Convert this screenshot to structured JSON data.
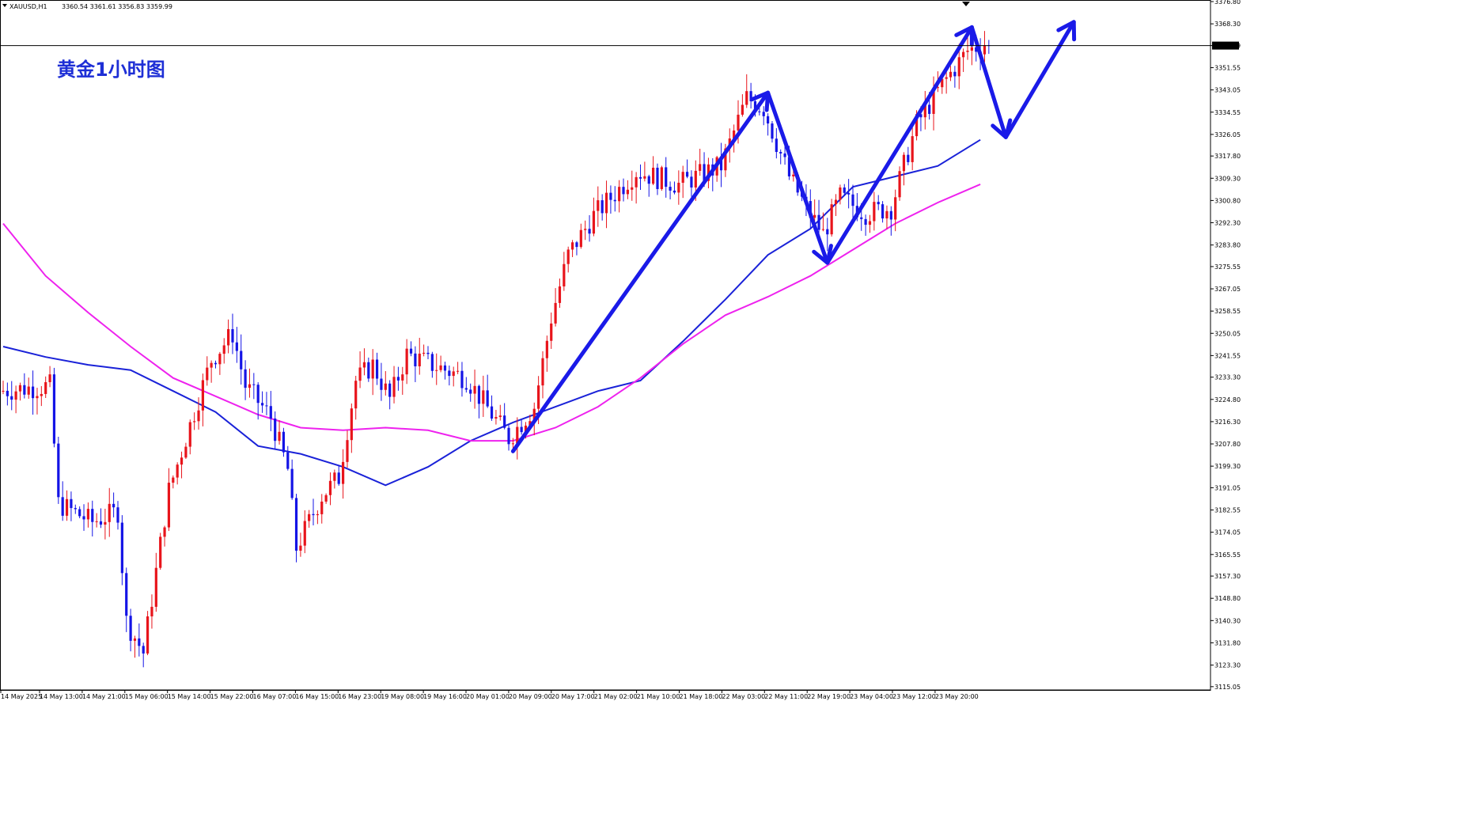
{
  "header": {
    "symbol": "XAUUSD,H1",
    "ohlc": "3360.54 3361.61 3356.83 3359.99"
  },
  "annotation_title": "黄金1小时图",
  "current_price_label": "3359.99",
  "colors": {
    "bull": "#e8141b",
    "bear": "#1414e6",
    "ma_fast": "#1a22d8",
    "ma_slow": "#ee22ee",
    "arrows": "#1a1ae8",
    "price_line": "#000000"
  },
  "chart_data": {
    "type": "candlestick",
    "instrument": "XAUUSD",
    "timeframe": "H1",
    "ylim": [
      3115.0,
      3376.8
    ],
    "y_ticks": [
      "3376.80",
      "3368.30",
      "3359.99",
      "3351.55",
      "3343.05",
      "3334.55",
      "3326.05",
      "3317.80",
      "3309.30",
      "3300.80",
      "3292.30",
      "3283.80",
      "3275.55",
      "3267.05",
      "3258.55",
      "3250.05",
      "3241.55",
      "3233.30",
      "3224.80",
      "3216.30",
      "3207.80",
      "3199.30",
      "3191.05",
      "3182.55",
      "3174.05",
      "3165.55",
      "3157.30",
      "3148.80",
      "3140.30",
      "3131.80",
      "3123.30",
      "3115.05"
    ],
    "x_ticks": [
      "14 May 2025",
      "14 May 13:00",
      "14 May 21:00",
      "15 May 06:00",
      "15 May 14:00",
      "15 May 22:00",
      "16 May 07:00",
      "16 May 15:00",
      "16 May 23:00",
      "19 May 08:00",
      "19 May 16:00",
      "20 May 01:00",
      "20 May 09:00",
      "20 May 17:00",
      "21 May 02:00",
      "21 May 10:00",
      "21 May 18:00",
      "22 May 03:00",
      "22 May 11:00",
      "22 May 19:00",
      "23 May 04:00",
      "23 May 12:00",
      "23 May 20:00"
    ],
    "price_line": 3359.99,
    "series": [
      {
        "name": "",
        "kind": "ma",
        "points": [
          [
            0,
            3245
          ],
          [
            10,
            3241
          ],
          [
            20,
            3238
          ],
          [
            30,
            3236
          ],
          [
            40,
            3228
          ],
          [
            50,
            3220
          ],
          [
            60,
            3207
          ],
          [
            70,
            3204
          ],
          [
            80,
            3199
          ],
          [
            90,
            3192
          ],
          [
            100,
            3199
          ],
          [
            110,
            3209
          ],
          [
            120,
            3216
          ],
          [
            130,
            3222
          ],
          [
            140,
            3228
          ],
          [
            150,
            3232
          ],
          [
            160,
            3247
          ],
          [
            170,
            3263
          ],
          [
            180,
            3280
          ],
          [
            190,
            3290
          ],
          [
            200,
            3306
          ],
          [
            210,
            3310
          ],
          [
            220,
            3314
          ],
          [
            230,
            3324
          ]
        ]
      },
      {
        "name": "",
        "kind": "ma",
        "points": [
          [
            0,
            3292
          ],
          [
            10,
            3272
          ],
          [
            20,
            3258
          ],
          [
            30,
            3245
          ],
          [
            40,
            3233
          ],
          [
            50,
            3226
          ],
          [
            60,
            3219
          ],
          [
            70,
            3214
          ],
          [
            80,
            3213
          ],
          [
            90,
            3214
          ],
          [
            100,
            3213
          ],
          [
            110,
            3209
          ],
          [
            120,
            3209
          ],
          [
            130,
            3214
          ],
          [
            140,
            3222
          ],
          [
            150,
            3233
          ],
          [
            160,
            3246
          ],
          [
            170,
            3257
          ],
          [
            180,
            3264
          ],
          [
            190,
            3272
          ],
          [
            200,
            3282
          ],
          [
            210,
            3292
          ],
          [
            220,
            3300
          ],
          [
            230,
            3307
          ]
        ]
      }
    ],
    "arrows": [
      [
        [
          120,
          3205
        ],
        [
          180,
          3342
        ]
      ],
      [
        [
          180,
          3342
        ],
        [
          194,
          3277
        ]
      ],
      [
        [
          194,
          3277
        ],
        [
          228,
          3367
        ]
      ],
      [
        [
          228,
          3367
        ],
        [
          236,
          3325
        ]
      ],
      [
        [
          236,
          3325
        ],
        [
          252,
          3369
        ]
      ]
    ]
  }
}
